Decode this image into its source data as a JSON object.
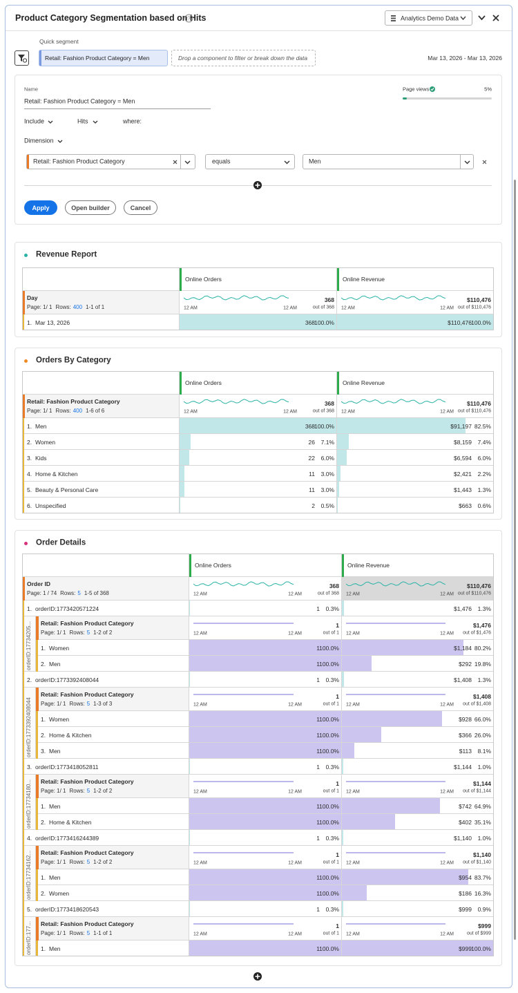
{
  "header": {
    "title": "Product Category Segmentation based on Hits",
    "data_source": "Analytics Demo Data"
  },
  "segment": {
    "label": "Quick segment",
    "chip": "Retail: Fashion Product Category = Men",
    "drop_hint": "Drop a component to filter or break down the data",
    "date_range": "Mar 13, 2026 - Mar 13, 2026"
  },
  "builder": {
    "name_label": "Name",
    "name_value": "Retail: Fashion Product Category = Men",
    "page_views_label": "Page views",
    "page_views_pct": "5%",
    "include": "Include",
    "hits": "Hits",
    "where": "where:",
    "dimension": "Dimension",
    "dimension_value": "Retail: Fashion Product Category",
    "operator": "equals",
    "value": "Men",
    "buttons": {
      "apply": "Apply",
      "open": "Open builder",
      "cancel": "Cancel"
    }
  },
  "panels": [
    {
      "title": "Revenue Report",
      "dot": "#2ab3a6",
      "columns": [
        "Online Orders",
        "Online Revenue"
      ],
      "axis": [
        "12 AM",
        "12 AM"
      ],
      "dimension": {
        "name": "Day",
        "page": "Page: 1/ 1",
        "rows_label": "Rows:",
        "rows": "400",
        "range": "1-1 of 1"
      },
      "totals": [
        {
          "value": "368",
          "out_of": "out of 368"
        },
        {
          "value": "$110,476",
          "out_of": "out of $110,476"
        }
      ],
      "rows": [
        {
          "n": "1.",
          "label": "Mar 13, 2026",
          "cells": [
            {
              "value": "368",
              "pct": "100.0%"
            },
            {
              "value": "$110,476",
              "pct": "100.0%"
            }
          ]
        }
      ]
    },
    {
      "title": "Orders By Category",
      "dot": "#f08a24",
      "columns": [
        "Online Orders",
        "Online Revenue"
      ],
      "axis": [
        "12 AM",
        "12 AM"
      ],
      "dimension": {
        "name": "Retail: Fashion Product Category",
        "page": "Page: 1/ 1",
        "rows_label": "Rows:",
        "rows": "400",
        "range": "1-6 of 6"
      },
      "totals": [
        {
          "value": "368",
          "out_of": "out of 368"
        },
        {
          "value": "$110,476",
          "out_of": "out of $110,476"
        }
      ],
      "rows": [
        {
          "n": "1.",
          "label": "Men",
          "cells": [
            {
              "value": "368",
              "pct": "100.0%"
            },
            {
              "value": "$91,197",
              "pct": "82.5%"
            }
          ]
        },
        {
          "n": "2.",
          "label": "Women",
          "cells": [
            {
              "value": "26",
              "pct": "7.1%"
            },
            {
              "value": "$8,159",
              "pct": "7.4%"
            }
          ]
        },
        {
          "n": "3.",
          "label": "Kids",
          "cells": [
            {
              "value": "22",
              "pct": "6.0%"
            },
            {
              "value": "$6,594",
              "pct": "6.0%"
            }
          ]
        },
        {
          "n": "4.",
          "label": "Home & Kitchen",
          "cells": [
            {
              "value": "11",
              "pct": "3.0%"
            },
            {
              "value": "$2,421",
              "pct": "2.2%"
            }
          ]
        },
        {
          "n": "5.",
          "label": "Beauty & Personal Care",
          "cells": [
            {
              "value": "11",
              "pct": "3.0%"
            },
            {
              "value": "$1,443",
              "pct": "1.3%"
            }
          ]
        },
        {
          "n": "6.",
          "label": "Unspecified",
          "cells": [
            {
              "value": "2",
              "pct": "0.5%"
            },
            {
              "value": "$663",
              "pct": "0.6%"
            }
          ]
        }
      ]
    },
    {
      "title": "Order Details",
      "dot": "#d6337a",
      "columns": [
        "Online Orders",
        "Online Revenue"
      ],
      "axis": [
        "12 AM",
        "12 AM"
      ],
      "dimension": {
        "name": "Order ID",
        "page": "Page:  1 / 74",
        "rows_label": "Rows:",
        "rows": "5",
        "range": "1-5 of 368"
      },
      "totals": [
        {
          "value": "368",
          "out_of": "out of 368"
        },
        {
          "value": "$110,476",
          "out_of": "out of $110,476"
        }
      ],
      "rows": [
        {
          "n": "1.",
          "label": "orderID:1773420571224",
          "cells": [
            {
              "value": "1",
              "pct": "0.3%"
            },
            {
              "value": "$1,476",
              "pct": "1.3%"
            }
          ],
          "breakdown": {
            "side": "orderID:17734205...",
            "axis": [
              "12 AM",
              "12 AM"
            ],
            "dimension": {
              "name": "Retail: Fashion Product Category",
              "page": "Page: 1/ 1",
              "rows_label": "Rows:",
              "rows": "5",
              "range": "1-2 of 2"
            },
            "totals": [
              {
                "value": "1",
                "out_of": "out of 1"
              },
              {
                "value": "$1,476",
                "out_of": "out of $1,476"
              }
            ],
            "rows": [
              {
                "n": "1.",
                "label": "Women",
                "cells": [
                  {
                    "value": "1",
                    "pct": "100.0%"
                  },
                  {
                    "value": "$1,184",
                    "pct": "80.2%"
                  }
                ]
              },
              {
                "n": "2.",
                "label": "Men",
                "cells": [
                  {
                    "value": "1",
                    "pct": "100.0%"
                  },
                  {
                    "value": "$292",
                    "pct": "19.8%"
                  }
                ]
              }
            ]
          }
        },
        {
          "n": "2.",
          "label": "orderID:1773392408044",
          "cells": [
            {
              "value": "1",
              "pct": "0.3%"
            },
            {
              "value": "$1,408",
              "pct": "1.3%"
            }
          ],
          "breakdown": {
            "side": "orderID:1773392408044",
            "axis": [
              "12 AM",
              "12 AM"
            ],
            "dimension": {
              "name": "Retail: Fashion Product Category",
              "page": "Page: 1/ 1",
              "rows_label": "Rows:",
              "rows": "5",
              "range": "1-3 of 3"
            },
            "totals": [
              {
                "value": "1",
                "out_of": "out of 1"
              },
              {
                "value": "$1,408",
                "out_of": "out of $1,408"
              }
            ],
            "rows": [
              {
                "n": "1.",
                "label": "Women",
                "cells": [
                  {
                    "value": "1",
                    "pct": "100.0%"
                  },
                  {
                    "value": "$928",
                    "pct": "66.0%"
                  }
                ]
              },
              {
                "n": "2.",
                "label": "Home & Kitchen",
                "cells": [
                  {
                    "value": "1",
                    "pct": "100.0%"
                  },
                  {
                    "value": "$366",
                    "pct": "26.0%"
                  }
                ]
              },
              {
                "n": "3.",
                "label": "Men",
                "cells": [
                  {
                    "value": "1",
                    "pct": "100.0%"
                  },
                  {
                    "value": "$113",
                    "pct": "8.1%"
                  }
                ]
              }
            ]
          }
        },
        {
          "n": "3.",
          "label": "orderID:1773418052811",
          "cells": [
            {
              "value": "1",
              "pct": "0.3%"
            },
            {
              "value": "$1,144",
              "pct": "1.0%"
            }
          ],
          "breakdown": {
            "side": "orderID:17734180...",
            "axis": [
              "12 AM",
              "12 AM"
            ],
            "dimension": {
              "name": "Retail: Fashion Product Category",
              "page": "Page: 1/ 1",
              "rows_label": "Rows:",
              "rows": "5",
              "range": "1-2 of 2"
            },
            "totals": [
              {
                "value": "1",
                "out_of": "out of 1"
              },
              {
                "value": "$1,144",
                "out_of": "out of $1,144"
              }
            ],
            "rows": [
              {
                "n": "1.",
                "label": "Men",
                "cells": [
                  {
                    "value": "1",
                    "pct": "100.0%"
                  },
                  {
                    "value": "$742",
                    "pct": "64.9%"
                  }
                ]
              },
              {
                "n": "2.",
                "label": "Home & Kitchen",
                "cells": [
                  {
                    "value": "1",
                    "pct": "100.0%"
                  },
                  {
                    "value": "$402",
                    "pct": "35.1%"
                  }
                ]
              }
            ]
          }
        },
        {
          "n": "4.",
          "label": "orderID:1773416244389",
          "cells": [
            {
              "value": "1",
              "pct": "0.3%"
            },
            {
              "value": "$1,140",
              "pct": "1.0%"
            }
          ],
          "breakdown": {
            "side": "orderID:17734162...",
            "axis": [
              "12 AM",
              "12 AM"
            ],
            "dimension": {
              "name": "Retail: Fashion Product Category",
              "page": "Page: 1/ 1",
              "rows_label": "Rows:",
              "rows": "5",
              "range": "1-2 of 2"
            },
            "totals": [
              {
                "value": "1",
                "out_of": "out of 1"
              },
              {
                "value": "$1,140",
                "out_of": "out of $1,140"
              }
            ],
            "rows": [
              {
                "n": "1.",
                "label": "Men",
                "cells": [
                  {
                    "value": "1",
                    "pct": "100.0%"
                  },
                  {
                    "value": "$954",
                    "pct": "83.7%"
                  }
                ]
              },
              {
                "n": "2.",
                "label": "Women",
                "cells": [
                  {
                    "value": "1",
                    "pct": "100.0%"
                  },
                  {
                    "value": "$186",
                    "pct": "16.3%"
                  }
                ]
              }
            ]
          }
        },
        {
          "n": "5.",
          "label": "orderID:1773418620543",
          "cells": [
            {
              "value": "1",
              "pct": "0.3%"
            },
            {
              "value": "$999",
              "pct": "0.9%"
            }
          ],
          "breakdown": {
            "side": "orderID:177...",
            "axis": [
              "12 AM",
              "12 AM"
            ],
            "dimension": {
              "name": "Retail: Fashion Product Category",
              "page": "Page: 1/ 1",
              "rows_label": "Rows:",
              "rows": "5",
              "range": "1-1 of 1"
            },
            "totals": [
              {
                "value": "1",
                "out_of": "out of 1"
              },
              {
                "value": "$999",
                "out_of": "out of $999"
              }
            ],
            "rows": [
              {
                "n": "1.",
                "label": "Men",
                "cells": [
                  {
                    "value": "1",
                    "pct": "100.0%"
                  },
                  {
                    "value": "$999",
                    "pct": "100.0%"
                  }
                ]
              }
            ]
          }
        }
      ]
    }
  ]
}
